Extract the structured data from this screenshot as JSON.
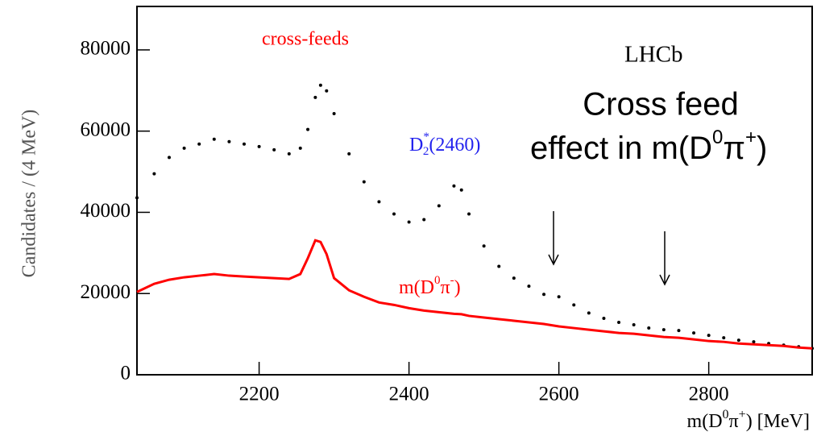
{
  "chart_data": {
    "type": "scatter",
    "xlabel": [
      "m(D",
      "0",
      "π",
      "+",
      ") [MeV]"
    ],
    "ylabel": "Candidates / (4 MeV)",
    "xlim": [
      2037,
      2938
    ],
    "ylim": [
      0,
      90700
    ],
    "xticks": [
      2200,
      2400,
      2600,
      2800
    ],
    "yticks": [
      0,
      20000,
      40000,
      60000,
      80000
    ],
    "annotations": {
      "cross_feeds": "cross-feeds",
      "experiment": "LHCb",
      "overlay_line1": "Cross feed",
      "overlay_line2": [
        "effect in m(D",
        "0",
        "π",
        "+",
        ")"
      ],
      "resonance": [
        "D",
        "*",
        "2",
        "(2460)"
      ],
      "red_label": [
        "m(D",
        "0",
        "π",
        "-",
        ")"
      ]
    },
    "x": [
      2037,
      2060,
      2080,
      2100,
      2120,
      2140,
      2160,
      2180,
      2200,
      2220,
      2240,
      2255,
      2265,
      2275,
      2282,
      2290,
      2300,
      2320,
      2340,
      2360,
      2380,
      2400,
      2420,
      2440,
      2460,
      2470,
      2480,
      2500,
      2520,
      2540,
      2560,
      2580,
      2600,
      2620,
      2640,
      2660,
      2680,
      2700,
      2720,
      2740,
      2760,
      2780,
      2800,
      2820,
      2840,
      2860,
      2880,
      2900,
      2920,
      2938
    ],
    "series": [
      {
        "color": "#000000",
        "style": "dots",
        "values": [
          43600,
          49500,
          53500,
          55800,
          56800,
          58000,
          57400,
          56800,
          56200,
          55400,
          54400,
          55800,
          60400,
          68300,
          71300,
          69900,
          64300,
          54400,
          47500,
          42600,
          39600,
          37600,
          38200,
          41600,
          46500,
          45500,
          39600,
          31700,
          26700,
          23800,
          21800,
          19800,
          19200,
          17200,
          15200,
          13900,
          12900,
          12300,
          11500,
          11100,
          10900,
          10300,
          9700,
          9100,
          8500,
          8100,
          7700,
          7300,
          6900,
          6500
        ]
      },
      {
        "color": "#ff0000",
        "style": "line",
        "values": [
          20400,
          22400,
          23400,
          24000,
          24400,
          24800,
          24400,
          24200,
          24000,
          23800,
          23600,
          24800,
          28700,
          33100,
          32700,
          29700,
          23800,
          20800,
          19200,
          17800,
          17200,
          16400,
          15800,
          15400,
          15000,
          14900,
          14500,
          14100,
          13700,
          13300,
          12900,
          12500,
          11900,
          11500,
          11100,
          10700,
          10300,
          10100,
          9700,
          9300,
          9100,
          8700,
          8300,
          8100,
          7700,
          7500,
          7300,
          7100,
          6700,
          6500
        ]
      }
    ]
  }
}
